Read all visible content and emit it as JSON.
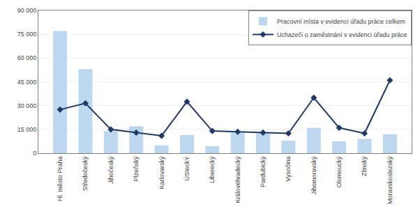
{
  "chart_data": {
    "type": "bar",
    "categories": [
      "Hl. město Praha",
      "Středočeský",
      "Jihočeský",
      "Plzeňský",
      "Karlovarský",
      "ÚSteckÝ",
      "Liberecký",
      "Královéhradecký",
      "Pardubický",
      "Vysočina",
      "Jihomoravský",
      "Olomoucký",
      "Zlínský",
      "Moravskoslezský"
    ],
    "series": [
      {
        "name": "Pracovní místa v evidenci úřadu práce celkem",
        "type": "bar",
        "color": "#bdd7ee",
        "values": [
          77000,
          53000,
          14000,
          17000,
          5000,
          11500,
          4500,
          13000,
          13000,
          8000,
          16000,
          7500,
          9000,
          12000
        ]
      },
      {
        "name": "Uchazeči o zaměstnání v evidenci úřadu práce",
        "type": "line",
        "color": "#1f3864",
        "marker": "diamond",
        "values": [
          27500,
          31500,
          15000,
          13000,
          11000,
          32500,
          14000,
          13500,
          13000,
          12500,
          35000,
          16000,
          12500,
          46000
        ]
      }
    ],
    "ylim": [
      0,
      90000
    ],
    "yticks": [
      0,
      {
        "value": 15000,
        "label": "15 000"
      },
      {
        "value": 30000,
        "label": "30 000"
      },
      {
        "value": 45000,
        "label": "45 000"
      },
      {
        "value": 60000,
        "label": "60 000"
      },
      {
        "value": 75000,
        "label": "75 000"
      },
      {
        "value": 90000,
        "label": "90 000"
      }
    ],
    "grid": true,
    "legend": "upper right"
  }
}
